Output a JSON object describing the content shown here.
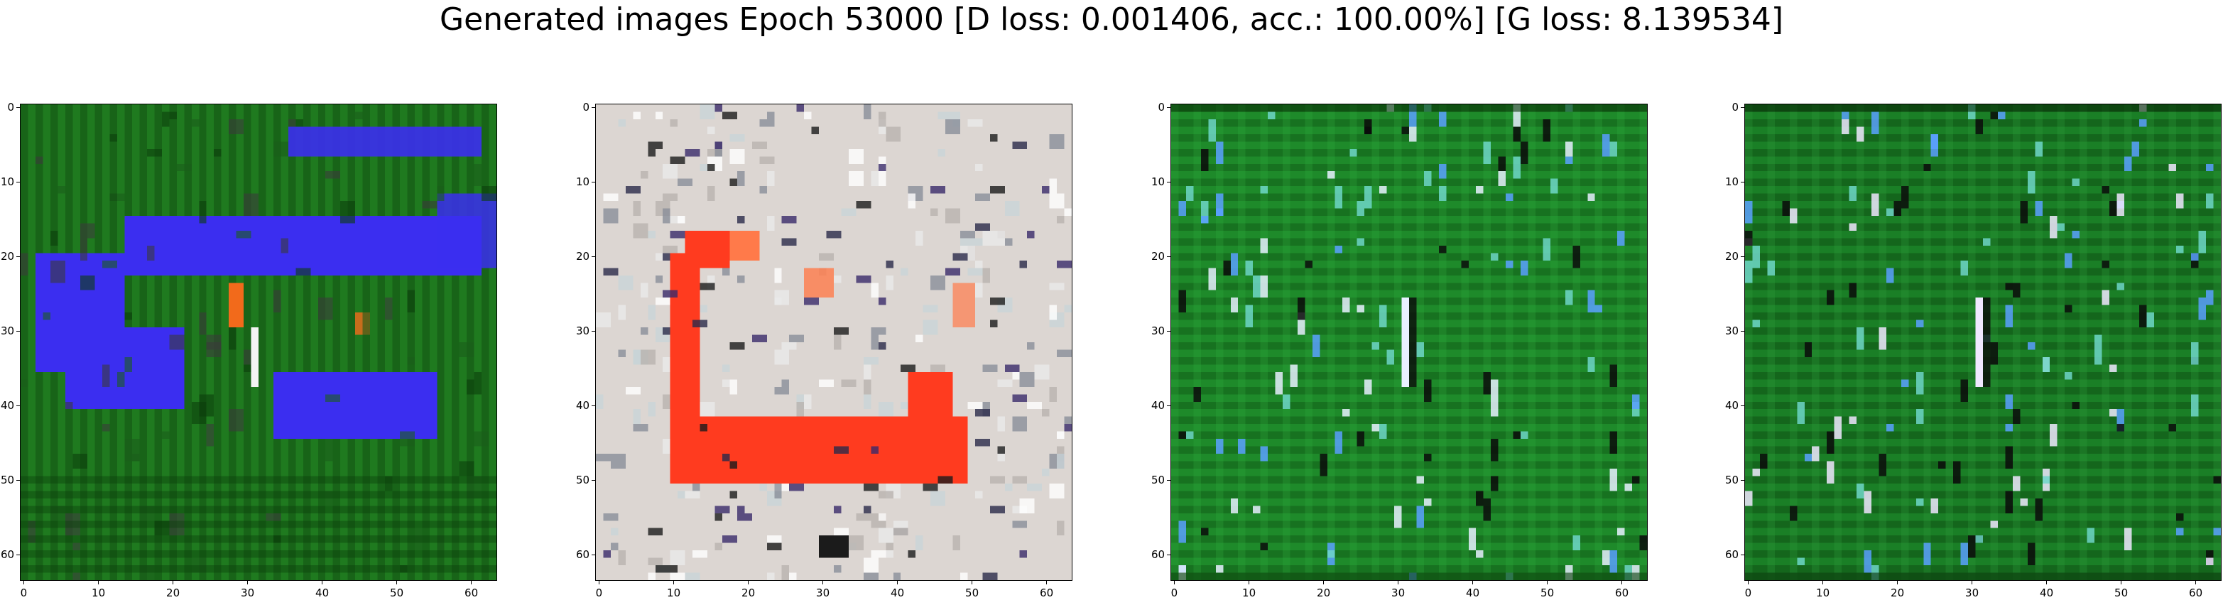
{
  "title": "Generated images Epoch 53000 [D loss: 0.001406, acc.: 100.00%] [G loss: 8.139534]",
  "axis": {
    "x_ticks": [
      "0",
      "10",
      "20",
      "30",
      "40",
      "50",
      "60"
    ],
    "y_ticks": [
      "0",
      "10",
      "20",
      "30",
      "40",
      "50",
      "60"
    ],
    "range": [
      0,
      63
    ]
  },
  "panels": [
    {
      "name": "generated-image-1",
      "background": "#1f7a1f",
      "colors": {
        "primary": "#3b2ef0",
        "accent": "#f26a1b",
        "dark": "#0b3d0b"
      }
    },
    {
      "name": "generated-image-2",
      "background": "#dcd6d2",
      "colors": {
        "primary": "#ff3b1f",
        "accent": "#ff7a4a",
        "dark": "#1b1b1b"
      }
    },
    {
      "name": "generated-image-3",
      "background": "#1e8a2a",
      "colors": {
        "primary": "#2fa83d",
        "accent": "#e8f0ff",
        "dark": "#0a3a0a"
      }
    },
    {
      "name": "generated-image-4",
      "background": "#1a7f26",
      "colors": {
        "primary": "#2f9b3a",
        "accent": "#f0e8ff",
        "dark": "#082f08"
      }
    }
  ]
}
